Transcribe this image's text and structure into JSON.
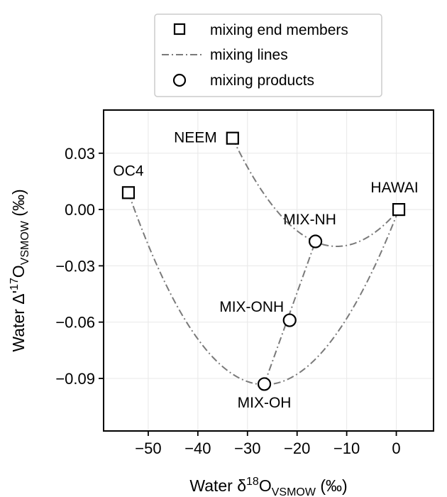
{
  "chart_data": {
    "type": "scatter",
    "xlabel": {
      "prefix": "Water δ",
      "sup": "18",
      "main": "O",
      "sub": "VSMOW",
      "suffix": " (‰)"
    },
    "ylabel": {
      "prefix": "Water Δ'",
      "sup": "17",
      "main": "O",
      "sub": "VSMOW",
      "suffix": " (‰)"
    },
    "xlim": [
      -59,
      7.5
    ],
    "ylim": [
      -0.118,
      0.053
    ],
    "xticks": [
      -50,
      -40,
      -30,
      -20,
      -10,
      0
    ],
    "xtick_labels": [
      "−50",
      "−40",
      "−30",
      "−20",
      "−10",
      "0"
    ],
    "yticks": [
      0.03,
      0.0,
      -0.03,
      -0.06,
      -0.09
    ],
    "ytick_labels": [
      "0.03",
      "0.00",
      "−0.03",
      "−0.06",
      "−0.09"
    ],
    "grid": true,
    "legend": {
      "placement": "top-center outside",
      "entries": [
        {
          "label": "mixing end members",
          "marker": "square"
        },
        {
          "label": "mixing lines",
          "marker": "dashdot-line"
        },
        {
          "label": "mixing products",
          "marker": "circle"
        }
      ]
    },
    "end_members": [
      {
        "label": "OC4",
        "x": -54.0,
        "y": 0.009
      },
      {
        "label": "NEEM",
        "x": -33.0,
        "y": 0.038
      },
      {
        "label": "HAWAI",
        "x": 0.5,
        "y": 0.0
      }
    ],
    "mixing_products": [
      {
        "label": "MIX-NH",
        "x": -16.3,
        "y": -0.017
      },
      {
        "label": "MIX-ONH",
        "x": -21.5,
        "y": -0.059
      },
      {
        "label": "MIX-OH",
        "x": -26.6,
        "y": -0.093
      }
    ],
    "mixing_lines": [
      {
        "from": "OC4",
        "to": "HAWAI",
        "curved": true
      },
      {
        "from": "NEEM",
        "to": "HAWAI",
        "curved": true
      },
      {
        "from": "MIX-OH",
        "to": "MIX-NH",
        "curved": false
      }
    ],
    "colors": {
      "mixing_line": "#7a7a7a",
      "marker_edge": "#000000",
      "grid": "#e8e8e8"
    }
  }
}
